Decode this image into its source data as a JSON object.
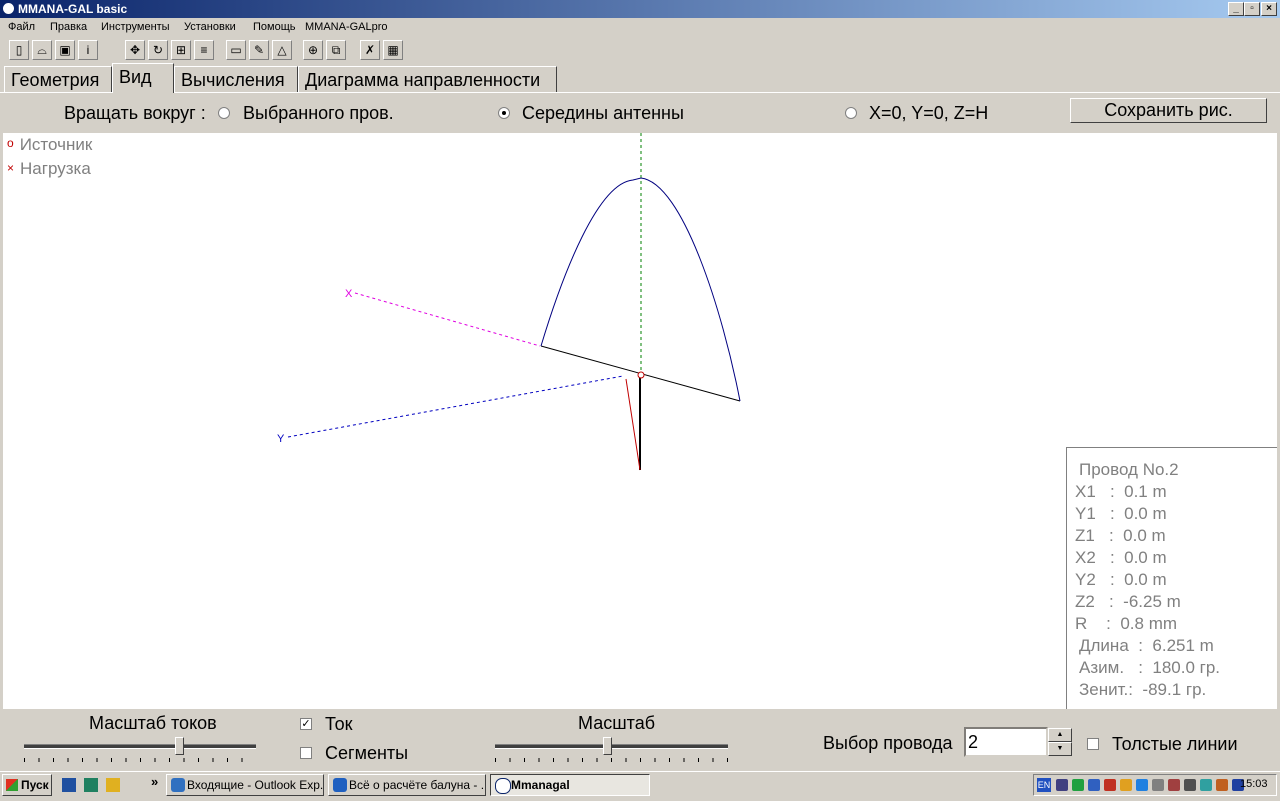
{
  "window": {
    "title": "MMANA-GAL basic",
    "min": "_",
    "max": "▫",
    "close": "×"
  },
  "menu": [
    "Файл",
    "Правка",
    "Инструменты",
    "Установки",
    "Помощь",
    "MMANA-GALpro"
  ],
  "tabs": [
    "Геометрия",
    "Вид",
    "Вычисления",
    "Диаграмма направленности"
  ],
  "rotate": {
    "label": "Вращать вокруг :",
    "opt1": "Выбранного пров.",
    "opt2": "Середины антенны",
    "opt3": "X=0, Y=0, Z=H",
    "selected": 2
  },
  "save_button": "Сохранить рис.",
  "legend": {
    "source_mark": "o",
    "source": "Источник",
    "load_mark": "×",
    "load": "Нагрузка"
  },
  "axes": {
    "x": "X",
    "y": "Y"
  },
  "wire_info": {
    "title": "Провод No.2",
    "x1": "X1   :  0.1 m",
    "y1": "Y1   :  0.0 m",
    "z1": "Z1   :  0.0 m",
    "x2": "X2   :  0.0 m",
    "y2": "Y2   :  0.0 m",
    "z2": "Z2   :  -6.25 m",
    "r": "R    :  0.8 mm",
    "length": "Длина  :  6.251 m",
    "azim": "Азим.   :  180.0 гр.",
    "zenith": "Зенит.:  -89.1 гр."
  },
  "bottom": {
    "current_scale": "Масштаб токов",
    "current_scale_value": 0.67,
    "current_label": "Ток",
    "current_checked": "✓",
    "segments_label": "Сегменты",
    "scale": "Масштаб",
    "scale_value": 0.48,
    "wire_select_label": "Выбор провода",
    "wire_select_value": "2",
    "thick_lines": "Толстые линии"
  },
  "taskbar": {
    "start": "Пуск",
    "chevron": "»",
    "items": [
      "Входящие - Outlook Exp...",
      "Всё о расчёте балуна - ...",
      "Mmanagal"
    ],
    "lang": "EN",
    "clock": "15:03"
  },
  "colors": {
    "title_start": "#0a246a",
    "title_end": "#a6caf0",
    "wire": "#000080",
    "current": "#c00000"
  }
}
